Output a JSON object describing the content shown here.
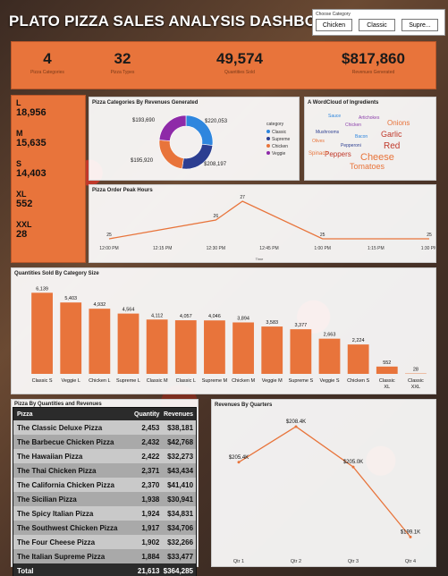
{
  "title": "PLATO PIZZA SALES ANALYSIS DASHBOARD",
  "slicer": {
    "label": "Choose Category",
    "options": [
      "Chicken",
      "Classic",
      "Supre..."
    ]
  },
  "kpis": [
    {
      "value": "4",
      "label": "Pizza Categories"
    },
    {
      "value": "32",
      "label": "Pizza Types"
    },
    {
      "value": "49,574",
      "label": "Quantities Sold"
    },
    {
      "value": "$817,860",
      "label": "Revenues Generated"
    }
  ],
  "size_counts": [
    {
      "size": "L",
      "count": "18,956"
    },
    {
      "size": "M",
      "count": "15,635"
    },
    {
      "size": "S",
      "count": "14,403"
    },
    {
      "size": "XL",
      "count": "552"
    },
    {
      "size": "XXL",
      "count": "28"
    }
  ],
  "donut": {
    "title": "Pizza Categories By Revenues Generated",
    "legend_title": "category",
    "labels": [
      "$220,053",
      "$208,197",
      "$195,920",
      "$193,690"
    ],
    "chart_data": {
      "type": "pie",
      "categories": [
        "Classic",
        "Supreme",
        "Chicken",
        "Veggie"
      ],
      "values": [
        220053,
        208197,
        195920,
        193690
      ],
      "colors": [
        "#2e86de",
        "#2c3e91",
        "#e8743b",
        "#8e2aa8"
      ]
    }
  },
  "wordcloud": {
    "title": "A WordCloud of Ingredients",
    "words": [
      {
        "text": "Cheese",
        "color": "#e8743b",
        "size": 11
      },
      {
        "text": "Red",
        "color": "#c0392b",
        "size": 10
      },
      {
        "text": "Garlic",
        "color": "#c0392b",
        "size": 9
      },
      {
        "text": "Onions",
        "color": "#e8743b",
        "size": 8
      },
      {
        "text": "Tomatoes",
        "color": "#e8743b",
        "size": 9
      },
      {
        "text": "Peppers",
        "color": "#c0392b",
        "size": 8
      },
      {
        "text": "Spinach",
        "color": "#e8743b",
        "size": 6
      },
      {
        "text": "Sauce",
        "color": "#2e86de",
        "size": 5
      },
      {
        "text": "Chicken",
        "color": "#8e44ad",
        "size": 5
      },
      {
        "text": "Mushrooms",
        "color": "#2c3e91",
        "size": 5
      },
      {
        "text": "Bacon",
        "color": "#2e86de",
        "size": 5
      },
      {
        "text": "Olives",
        "color": "#e8743b",
        "size": 5
      },
      {
        "text": "Pepperoni",
        "color": "#2c3e91",
        "size": 5
      },
      {
        "text": "Artichokes",
        "color": "#8e44ad",
        "size": 5
      }
    ]
  },
  "peak_hours": {
    "title": "Pizza Order Peak Hours",
    "xlabel": "Time",
    "chart_data": {
      "type": "line",
      "x": [
        "12:00 PM",
        "12:15 PM",
        "12:30 PM",
        "12:45 PM",
        "1:00 PM",
        "1:15 PM",
        "1:30 PM"
      ],
      "values": [
        [
          0,
          25
        ],
        [
          2,
          26
        ],
        [
          2.5,
          27
        ],
        [
          4,
          25
        ],
        [
          6,
          25
        ]
      ],
      "point_labels": [
        "25",
        "26",
        "27",
        "25",
        "25"
      ],
      "color": "#e8743b"
    }
  },
  "quantities": {
    "title": "Quantities Sold By Category Size",
    "chart_data": {
      "type": "bar",
      "categories": [
        "Classic S",
        "Veggie L",
        "Chicken L",
        "Supreme L",
        "Classic M",
        "Classic L",
        "Supreme M",
        "Chicken M",
        "Veggie M",
        "Supreme S",
        "Veggie S",
        "Chicken S",
        "Classic XL",
        "Classic XXL"
      ],
      "values": [
        6139,
        5403,
        4932,
        4564,
        4112,
        4057,
        4046,
        3894,
        3583,
        3377,
        2663,
        2224,
        552,
        28
      ],
      "value_labels": [
        "6,139",
        "5,403",
        "4,932",
        "4,564",
        "4,112",
        "4,057",
        "4,046",
        "3,894",
        "3,583",
        "3,377",
        "2,663",
        "2,224",
        "552",
        "28"
      ],
      "ylim": [
        0,
        6500
      ],
      "color": "#e8743b"
    }
  },
  "pizza_table": {
    "title": "Pizza By Quantities and Revenues",
    "headers": [
      "Pizza",
      "Quantity",
      "Revenues"
    ],
    "rows": [
      [
        "The Classic Deluxe Pizza",
        "2,453",
        "$38,181"
      ],
      [
        "The Barbecue Chicken Pizza",
        "2,432",
        "$42,768"
      ],
      [
        "The Hawaiian Pizza",
        "2,422",
        "$32,273"
      ],
      [
        "The Thai Chicken Pizza",
        "2,371",
        "$43,434"
      ],
      [
        "The California Chicken Pizza",
        "2,370",
        "$41,410"
      ],
      [
        "The Sicilian Pizza",
        "1,938",
        "$30,941"
      ],
      [
        "The Spicy Italian Pizza",
        "1,924",
        "$34,831"
      ],
      [
        "The Southwest Chicken Pizza",
        "1,917",
        "$34,706"
      ],
      [
        "The Four Cheese Pizza",
        "1,902",
        "$32,266"
      ],
      [
        "The Italian Supreme Pizza",
        "1,884",
        "$33,477"
      ]
    ],
    "total": [
      "Total",
      "21,613",
      "$364,285"
    ]
  },
  "quarters": {
    "title": "Revenues By Quarters",
    "chart_data": {
      "type": "line",
      "categories": [
        "Qtr 1",
        "Qtr 2",
        "Qtr 3",
        "Qtr 4"
      ],
      "values": [
        205.4,
        208.4,
        205.0,
        199.1
      ],
      "value_labels": [
        "$205.4K",
        "$208.4K",
        "$205.0K",
        "$199.1K"
      ],
      "ylim": [
        198,
        209
      ],
      "color": "#e8743b"
    }
  }
}
